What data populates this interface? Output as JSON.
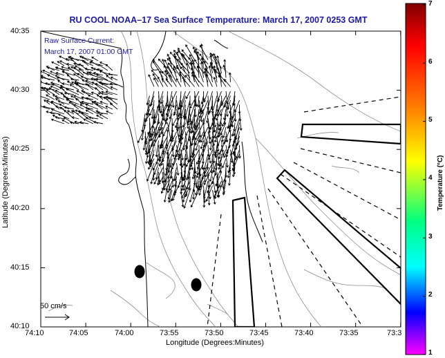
{
  "title": "RU COOL  NOAA–17  Sea Surface Temperature:  March 17, 2007 0253 GMT",
  "annotation": {
    "line1": "Raw Surface Current:",
    "line2": "March 17, 2007 01:00 GMT"
  },
  "scale_label": "50 cm/s",
  "axes": {
    "xlabel": "Longitude (Degrees:Minutes)",
    "ylabel": "Latitude (Degrees:Minutes)",
    "xticks": [
      "74:10",
      "74:05",
      "74:00",
      "73:55",
      "73:50",
      "73:45",
      "73:40",
      "73:35",
      "73:3"
    ],
    "yticks": [
      "40:35",
      "40:30",
      "40:25",
      "40:20",
      "40:15",
      "40:10"
    ]
  },
  "colorbar": {
    "title": "Temperature (°C)",
    "ticks": [
      "7",
      "6",
      "5",
      "4",
      "3",
      "2",
      "1"
    ],
    "colors": [
      "#800000",
      "#ff0000",
      "#ff8000",
      "#ffff00",
      "#00ff80",
      "#00ffff",
      "#0000ff",
      "#ff00ff"
    ]
  }
}
